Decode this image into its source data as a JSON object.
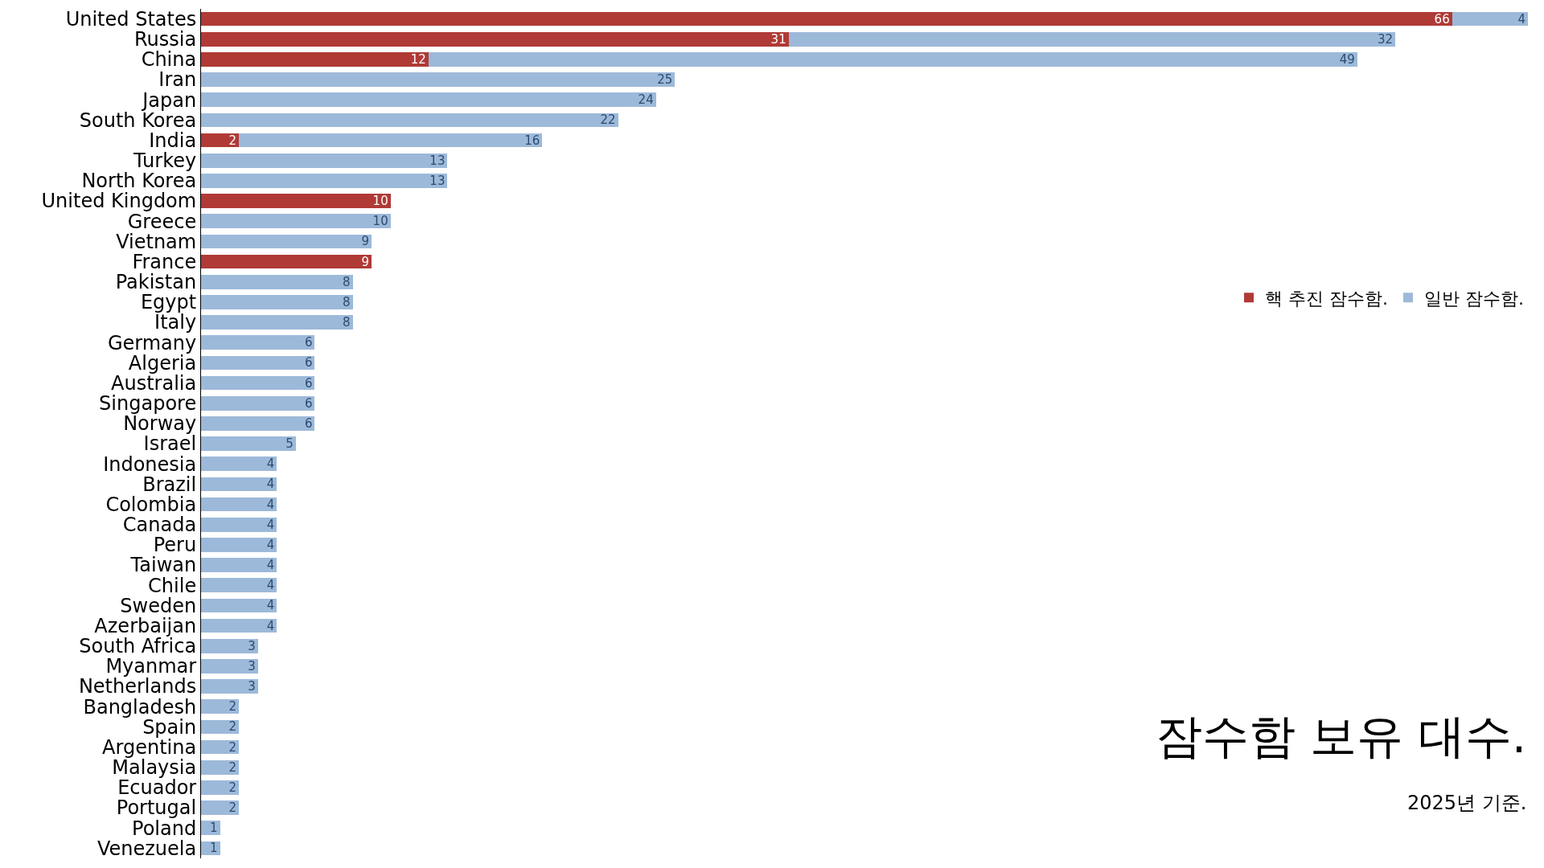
{
  "chart_data": {
    "type": "bar",
    "orientation": "horizontal",
    "stacked": true,
    "title": "잠수함 보유 대수.",
    "subtitle": "2025년 기준.",
    "categories": [
      "United States",
      "Russia",
      "China",
      "Iran",
      "Japan",
      "South Korea",
      "India",
      "Turkey",
      "North Korea",
      "United Kingdom",
      "Greece",
      "Vietnam",
      "France",
      "Pakistan",
      "Egypt",
      "Italy",
      "Germany",
      "Algeria",
      "Australia",
      "Singapore",
      "Norway",
      "Israel",
      "Indonesia",
      "Brazil",
      "Colombia",
      "Canada",
      "Peru",
      "Taiwan",
      "Chile",
      "Sweden",
      "Azerbaijan",
      "South Africa",
      "Myanmar",
      "Netherlands",
      "Bangladesh",
      "Spain",
      "Argentina",
      "Malaysia",
      "Ecuador",
      "Portugal",
      "Poland",
      "Venezuela"
    ],
    "series": [
      {
        "name": "핵 추진 잠수함.",
        "color": "#b03a36",
        "values": [
          66,
          31,
          12,
          null,
          null,
          null,
          2,
          null,
          null,
          10,
          null,
          null,
          9,
          null,
          null,
          null,
          null,
          null,
          null,
          null,
          null,
          null,
          null,
          null,
          null,
          null,
          null,
          null,
          null,
          null,
          null,
          null,
          null,
          null,
          null,
          null,
          null,
          null,
          null,
          null,
          null,
          null
        ]
      },
      {
        "name": "일반 잠수함.",
        "color": "#9db9d9",
        "values": [
          4,
          32,
          49,
          25,
          24,
          22,
          16,
          13,
          13,
          null,
          10,
          9,
          null,
          8,
          8,
          8,
          6,
          6,
          6,
          6,
          6,
          5,
          4,
          4,
          4,
          4,
          4,
          4,
          4,
          4,
          4,
          3,
          3,
          3,
          2,
          2,
          2,
          2,
          2,
          2,
          1,
          1
        ]
      }
    ],
    "xlim": [
      0,
      70
    ],
    "tick_labels": "y",
    "data_labels": true,
    "legend": "right"
  }
}
